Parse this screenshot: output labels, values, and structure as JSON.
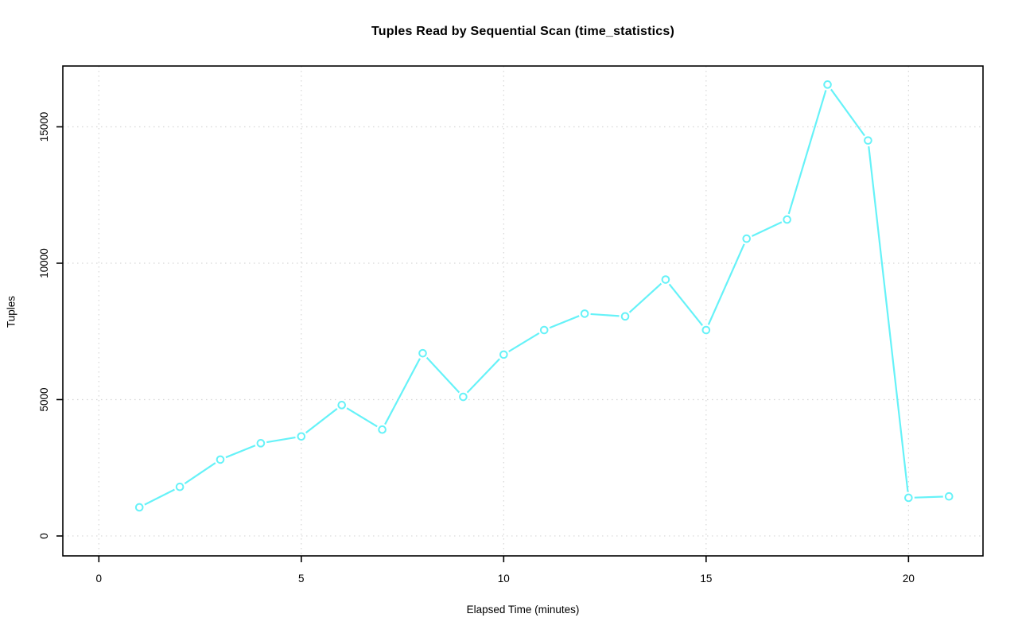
{
  "chart_data": {
    "type": "line",
    "title": "Tuples Read by Sequential Scan (time_statistics)",
    "xlabel": "Elapsed Time (minutes)",
    "ylabel": "Tuples",
    "x": [
      1,
      2,
      3,
      4,
      5,
      6,
      7,
      8,
      9,
      10,
      11,
      12,
      13,
      14,
      15,
      16,
      17,
      18,
      19,
      20,
      21
    ],
    "values": [
      1050,
      1800,
      2800,
      3400,
      3650,
      4800,
      3900,
      6700,
      5100,
      6650,
      7550,
      8150,
      8050,
      9400,
      7550,
      10900,
      11600,
      16550,
      14500,
      1400,
      1450
    ],
    "xticks": [
      0,
      5,
      10,
      15,
      20
    ],
    "xtick_labels": [
      "0",
      "5",
      "10",
      "15",
      "20"
    ],
    "yticks": [
      0,
      5000,
      10000,
      15000
    ],
    "ytick_labels": [
      "0",
      "5000",
      "10000",
      "15000"
    ],
    "xlim": [
      -0.89,
      21.84
    ],
    "ylim": [
      -730,
      17230
    ],
    "grid": "dotted",
    "legend": "none",
    "marker": "open-circle",
    "series_color": "#66F2F8",
    "grid_color": "#D6D6D6",
    "axis_color": "#000000",
    "background": "#FFFFFF"
  }
}
